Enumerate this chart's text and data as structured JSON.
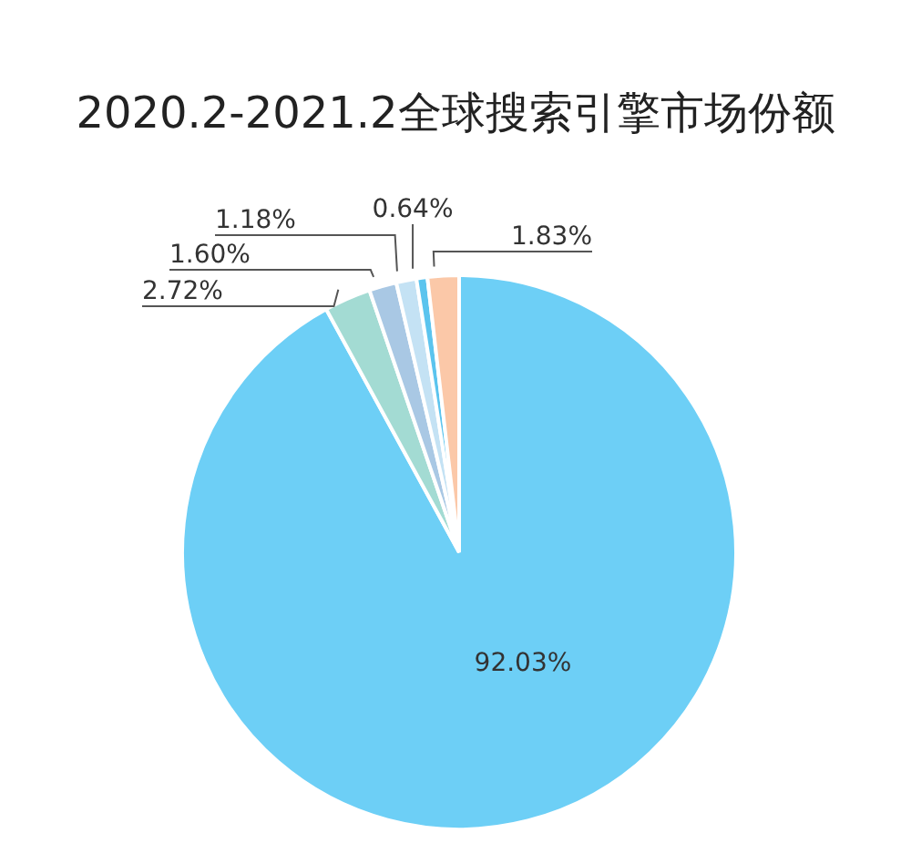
{
  "chart_data": {
    "type": "pie",
    "title": "2020.2-2021.2全球搜索引擎市场份额",
    "categories": [
      null,
      null,
      null,
      null,
      null,
      null
    ],
    "values": [
      92.03,
      2.72,
      1.6,
      1.18,
      0.64,
      1.83
    ],
    "value_labels": [
      "92.03%",
      "2.72%",
      "1.60%",
      "1.18%",
      "0.64%",
      "1.83%"
    ],
    "colors": [
      "#6dcff6",
      "#a3dbd3",
      "#a9c8e4",
      "#c4e2f4",
      "#5bc4ee",
      "#fbc8a8"
    ],
    "legend": false
  }
}
